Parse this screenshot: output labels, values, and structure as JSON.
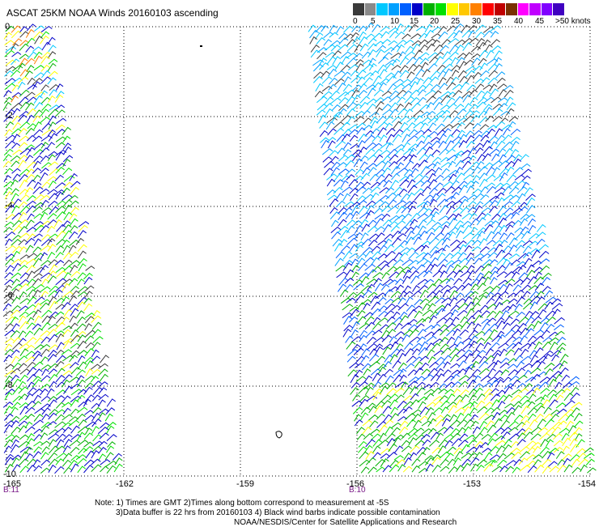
{
  "title": "ASCAT 25KM NOAA Winds 20160103 ascending",
  "legend": {
    "colors": [
      "#3a3a3a",
      "#8a8a8a",
      "#00c8ff",
      "#00a0ff",
      "#0060ff",
      "#0000c8",
      "#00b000",
      "#00e000",
      "#ffff00",
      "#ffc800",
      "#ff8000",
      "#ff0000",
      "#c00000",
      "#7a3000",
      "#ff00ff",
      "#c000ff",
      "#8000ff",
      "#4000c0"
    ],
    "ticks": [
      "0",
      "5",
      "10",
      "15",
      "20",
      "25",
      "30",
      "35",
      "40",
      "45",
      ">50 knots"
    ]
  },
  "axes": {
    "x_ticks": [
      "-165",
      "-162",
      "-159",
      "-156",
      "-153",
      "-154"
    ],
    "y_ticks": [
      "0",
      "-2",
      "-4",
      "-6",
      "-8",
      "-10"
    ]
  },
  "swath_times": [
    "B:11",
    "B:10"
  ],
  "notes": [
    "Note: 1) Times are GMT 2)Times along bottom correspond to measurement at -5S",
    "3)Data buffer is 22 hrs from 20160103 4) Black wind barbs indicate possible contamination",
    "NOAA/NESDIS/Center for Satellite Applications and Research"
  ]
}
